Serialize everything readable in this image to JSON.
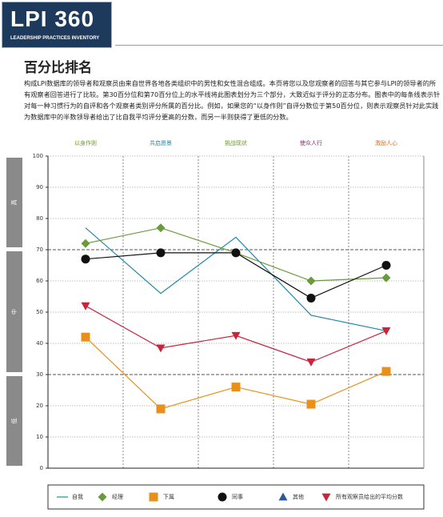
{
  "header": {
    "logo": "LPI 360",
    "logo_subtitle": "LEADERSHIP PRACTICES INVENTORY"
  },
  "title": "百分比排名",
  "description": "构成LPI数据库的领导者和观察员由来自世界各地各类组织中的男性和女性混合组成。本页将您以及您观察者的回答与其它参与LPI的领导者的所有观察者回答进行了比较。第30百分位和第70百分位上的水平线将此图表划分为三个部分，大致近似于评分的正态分布。图表中的每条线表示针对每一种习惯行为的自评和各个观察者类别评分所属的百分比。例如，如果您的“以身作则”自评分数位于第50百分位，则表示观察员针对此实践为数据库中的半数领导者给出了比自我平均评分更高的分数，而另一半则获得了更低的分数。",
  "chart_data": {
    "type": "line",
    "categories": [
      "以身作则",
      "共启愿景",
      "挑战现状",
      "使众人行",
      "激励人心"
    ],
    "category_colors": [
      "#6a9a2a",
      "#1e8aa6",
      "#6a9a2a",
      "#8a2a6a",
      "#e0702a"
    ],
    "bands": [
      {
        "label": "高",
        "range": [
          70,
          100
        ]
      },
      {
        "label": "中",
        "range": [
          30,
          70
        ]
      },
      {
        "label": "低",
        "range": [
          0,
          30
        ]
      }
    ],
    "series": [
      {
        "name": "自我",
        "color": "#1e8aa6",
        "marker": "none",
        "values": [
          77,
          56,
          74,
          49,
          44
        ]
      },
      {
        "name": "经理",
        "color": "#6a9a3a",
        "marker": "diamond",
        "values": [
          72,
          77,
          69,
          60,
          61
        ]
      },
      {
        "name": "下属",
        "color": "#e8901a",
        "marker": "square",
        "values": [
          42,
          19,
          26,
          20.5,
          31
        ]
      },
      {
        "name": "同事",
        "color": "#111111",
        "marker": "circle",
        "values": [
          67,
          69,
          69,
          54.5,
          65
        ]
      },
      {
        "name": "其他",
        "color": "#2a5a9a",
        "marker": "triangle",
        "values": [
          null,
          null,
          null,
          null,
          null
        ]
      },
      {
        "name": "所有观察员给出的平均分数",
        "color": "#c8243a",
        "marker": "triangle-down",
        "values": [
          52,
          38.5,
          42.5,
          34,
          44
        ]
      }
    ],
    "ylim": [
      0,
      100
    ],
    "yticks": [
      0,
      10,
      20,
      30,
      40,
      50,
      60,
      70,
      80,
      90,
      100
    ],
    "major_lines": [
      30,
      70
    ],
    "grid": true
  }
}
